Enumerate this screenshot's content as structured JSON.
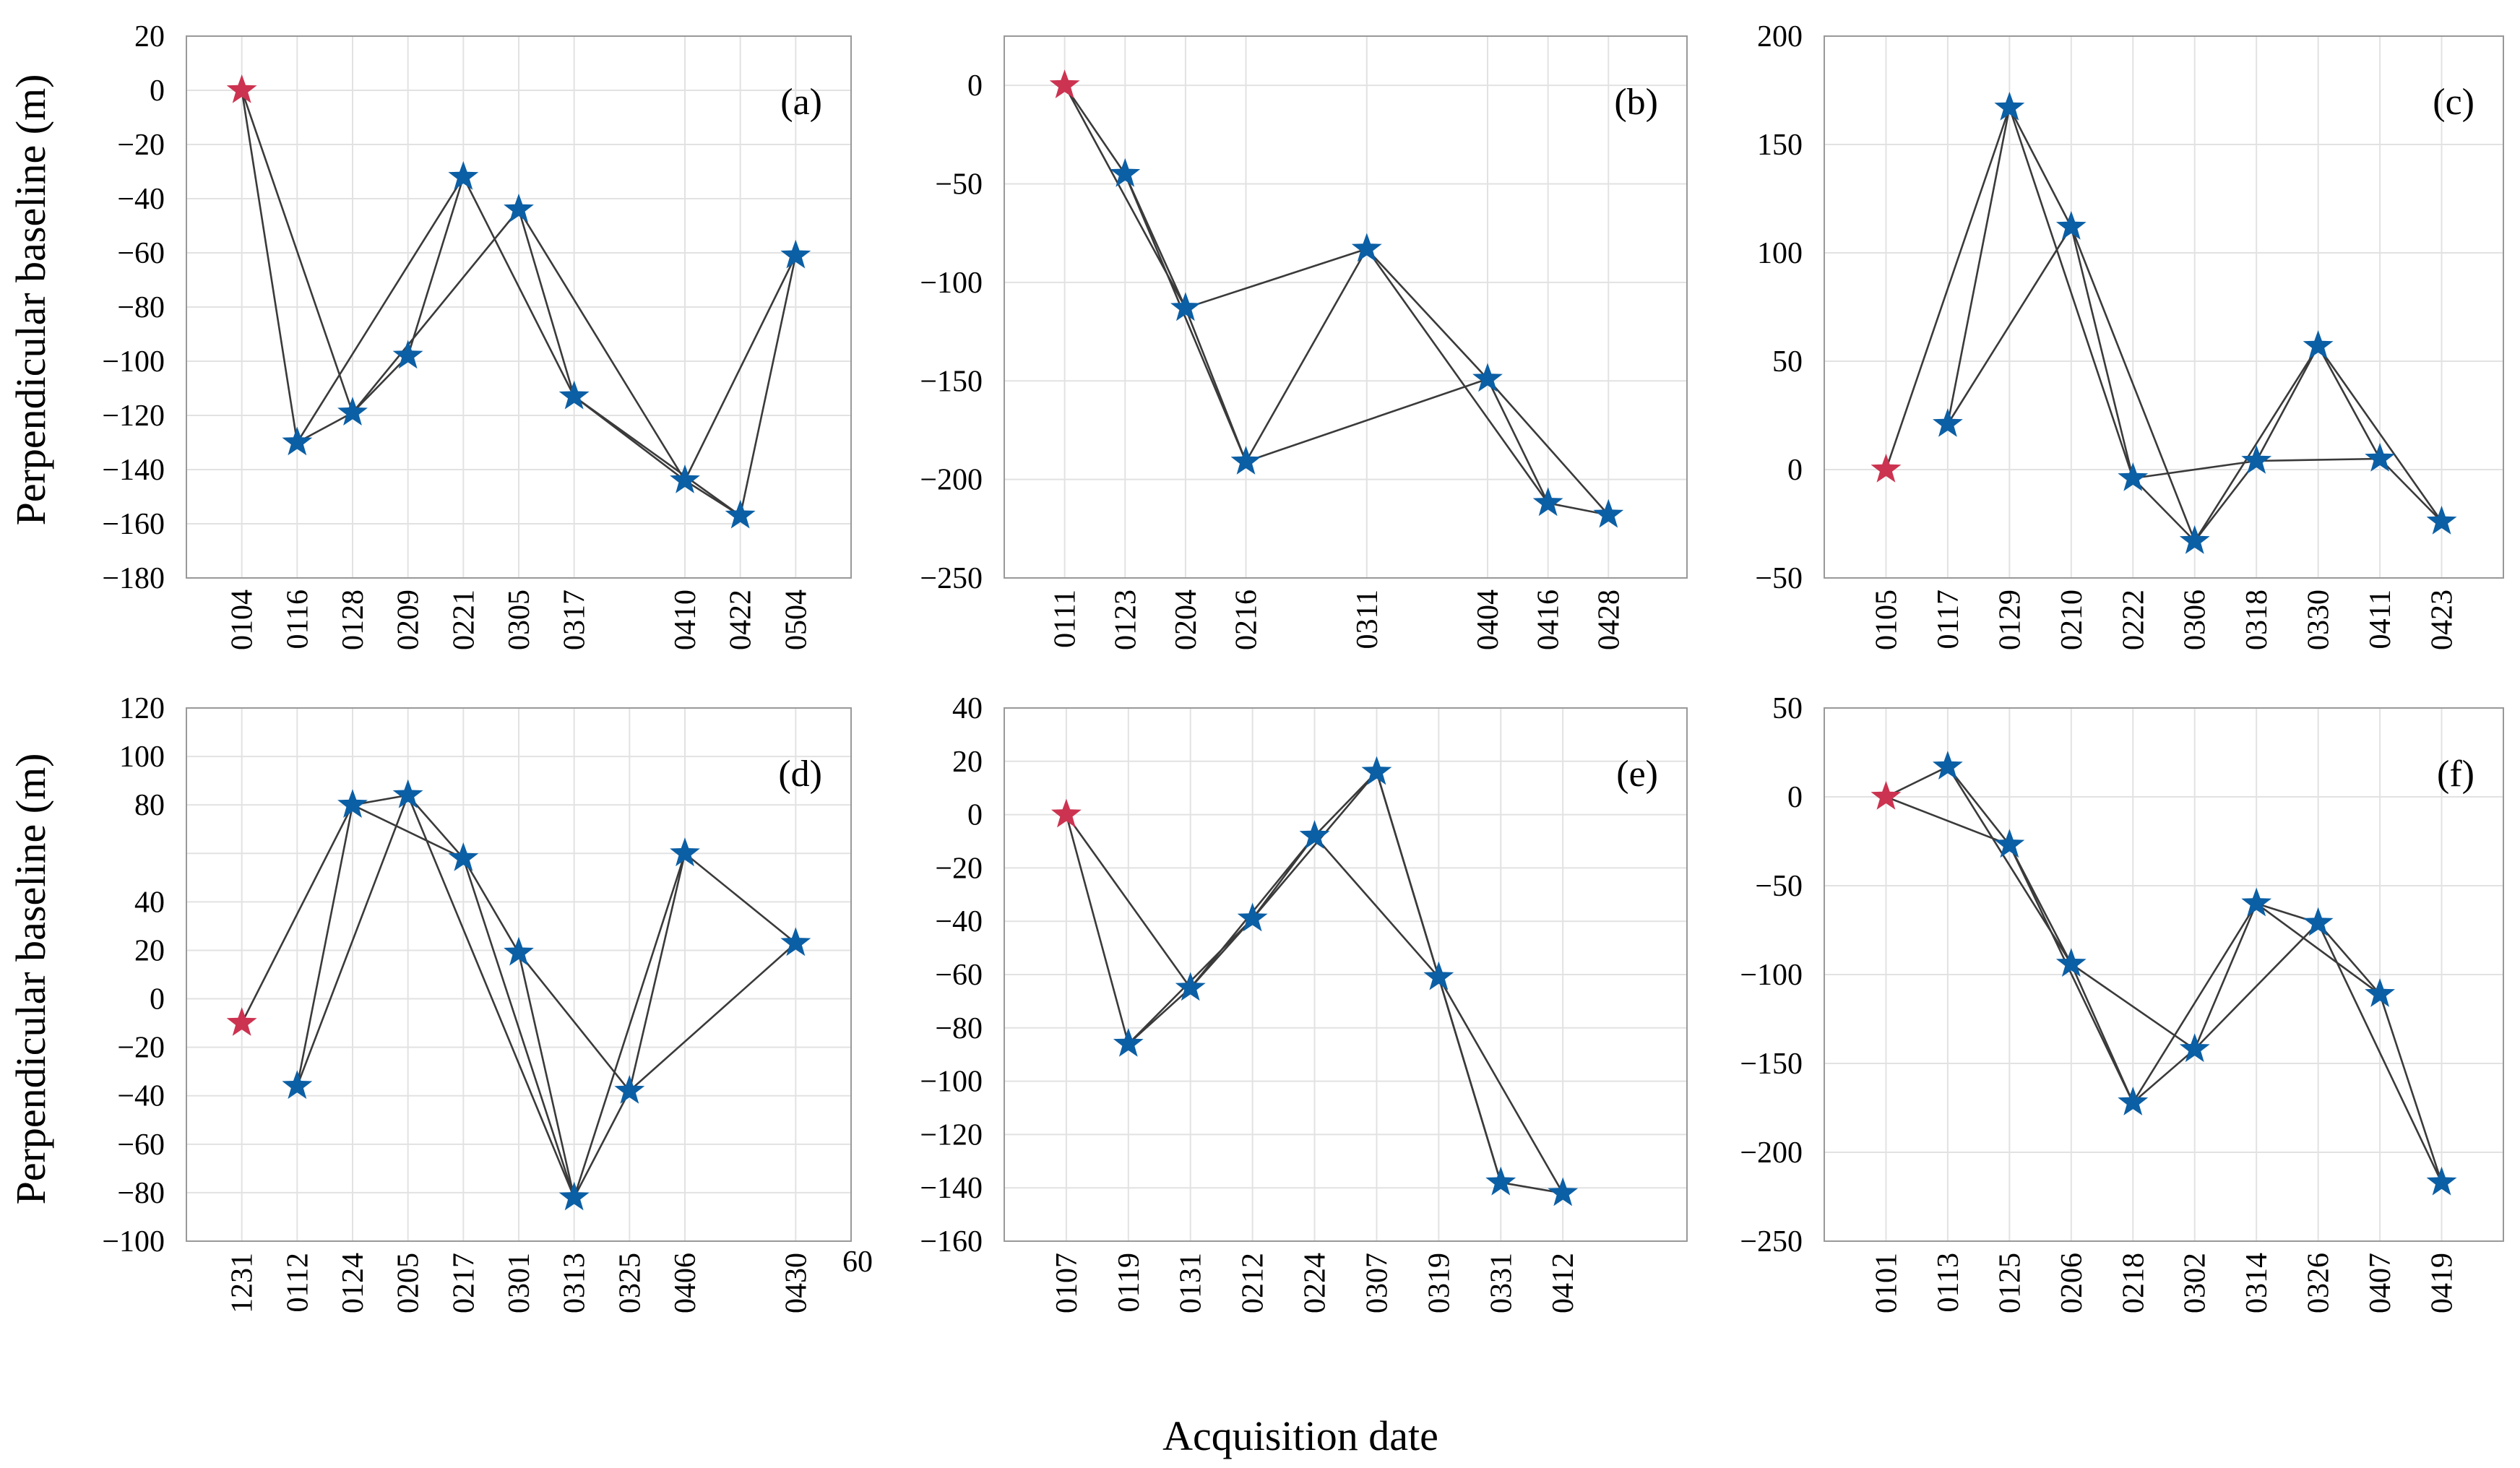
{
  "figure": {
    "ylabel": "Perpendicular baseline (m)",
    "xlabel": "Acquisition date"
  },
  "colors": {
    "master": "#cc3350",
    "slave": "#0b5fa5",
    "edge": "#3a3a3a"
  },
  "chart_data": [
    {
      "type": "scatter",
      "label": "(a)",
      "title": "",
      "xlabel": "Acquisition date",
      "ylabel": "Perpendicular baseline (m)",
      "dates": [
        "0104",
        "0116",
        "0128",
        "0209",
        "0221",
        "0305",
        "0317",
        "0410",
        "0422",
        "0504"
      ],
      "tick_labels": [
        "0104",
        "0116",
        "0128",
        "0209",
        "0221",
        "0305",
        "0317",
        "0410",
        "0422",
        "0504"
      ],
      "tick_positions": [
        0,
        1,
        2,
        3,
        4,
        5,
        6,
        8,
        9,
        10
      ],
      "points": [
        {
          "date": "0104",
          "day": 0,
          "baseline": 0,
          "master": true
        },
        {
          "date": "0116",
          "day": 1,
          "baseline": -130
        },
        {
          "date": "0128",
          "day": 2,
          "baseline": -119
        },
        {
          "date": "0209",
          "day": 3,
          "baseline": -98
        },
        {
          "date": "0221",
          "day": 4,
          "baseline": -32
        },
        {
          "date": "0305",
          "day": 5,
          "baseline": -44
        },
        {
          "date": "0317",
          "day": 6,
          "baseline": -113
        },
        {
          "date": "0410",
          "day": 8,
          "baseline": -144
        },
        {
          "date": "0422",
          "day": 9,
          "baseline": -157
        },
        {
          "date": "0504",
          "day": 10,
          "baseline": -61
        }
      ],
      "edges": [
        [
          0,
          1
        ],
        [
          0,
          2
        ],
        [
          1,
          2
        ],
        [
          1,
          4
        ],
        [
          2,
          3
        ],
        [
          2,
          5
        ],
        [
          3,
          4
        ],
        [
          4,
          6
        ],
        [
          5,
          6
        ],
        [
          5,
          7
        ],
        [
          6,
          7
        ],
        [
          6,
          8
        ],
        [
          7,
          8
        ],
        [
          7,
          9
        ],
        [
          8,
          9
        ]
      ],
      "ylim": [
        -180,
        20
      ],
      "yticks": [
        20,
        0,
        -20,
        -40,
        -60,
        -80,
        -100,
        -120,
        -140,
        -160,
        -180
      ],
      "ytick_labels": [
        "20",
        "0",
        "−20",
        "−40",
        "−60",
        "−80",
        "−100",
        "−120",
        "−140",
        "−160",
        "−180"
      ],
      "xlim": [
        -1,
        11
      ],
      "grid": true
    },
    {
      "type": "scatter",
      "label": "(b)",
      "title": "",
      "xlabel": "Acquisition date",
      "ylabel": "Perpendicular baseline (m)",
      "dates": [
        "0111",
        "0123",
        "0204",
        "0216",
        "0311",
        "0404",
        "0416",
        "0428"
      ],
      "tick_labels": [
        "0111",
        "0123",
        "0204",
        "0216",
        "0311",
        "0404",
        "0416",
        "0428"
      ],
      "tick_positions": [
        0,
        1,
        2,
        3,
        5,
        7,
        8,
        9
      ],
      "points": [
        {
          "date": "0111",
          "day": 0,
          "baseline": 0,
          "master": true
        },
        {
          "date": "0123",
          "day": 1,
          "baseline": -45
        },
        {
          "date": "0204",
          "day": 2,
          "baseline": -113
        },
        {
          "date": "0216",
          "day": 3,
          "baseline": -191
        },
        {
          "date": "0311",
          "day": 5,
          "baseline": -83
        },
        {
          "date": "0404",
          "day": 7,
          "baseline": -149
        },
        {
          "date": "0416",
          "day": 8,
          "baseline": -212
        },
        {
          "date": "0428",
          "day": 9,
          "baseline": -218
        }
      ],
      "edges": [
        [
          0,
          1
        ],
        [
          0,
          2
        ],
        [
          1,
          2
        ],
        [
          1,
          3
        ],
        [
          2,
          3
        ],
        [
          2,
          4
        ],
        [
          3,
          4
        ],
        [
          3,
          5
        ],
        [
          4,
          5
        ],
        [
          4,
          6
        ],
        [
          5,
          6
        ],
        [
          6,
          7
        ],
        [
          5,
          7
        ]
      ],
      "ylim": [
        -250,
        25
      ],
      "yticks": [
        0,
        -50,
        -100,
        -150,
        -200,
        -250
      ],
      "ytick_labels": [
        "0",
        "−50",
        "−100",
        "−150",
        "−200",
        "−250"
      ],
      "xlim": [
        -1,
        10.3
      ],
      "grid": true
    },
    {
      "type": "scatter",
      "label": "(c)",
      "title": "",
      "xlabel": "Acquisition date",
      "ylabel": "Perpendicular baseline (m)",
      "dates": [
        "0105",
        "0117",
        "0129",
        "0210",
        "0222",
        "0306",
        "0318",
        "0330",
        "0411",
        "0423"
      ],
      "tick_labels": [
        "0105",
        "0117",
        "0129",
        "0210",
        "0222",
        "0306",
        "0318",
        "0330",
        "0411",
        "0423"
      ],
      "tick_positions": [
        0,
        1,
        2,
        3,
        4,
        5,
        6,
        7,
        8,
        9
      ],
      "points": [
        {
          "date": "0105",
          "day": 0,
          "baseline": 0,
          "master": true
        },
        {
          "date": "0117",
          "day": 1,
          "baseline": 21
        },
        {
          "date": "0129",
          "day": 2,
          "baseline": 167
        },
        {
          "date": "0210",
          "day": 3,
          "baseline": 112
        },
        {
          "date": "0222",
          "day": 4,
          "baseline": -4
        },
        {
          "date": "0306",
          "day": 5,
          "baseline": -33
        },
        {
          "date": "0318",
          "day": 6,
          "baseline": 4
        },
        {
          "date": "0330",
          "day": 7,
          "baseline": 57
        },
        {
          "date": "0411",
          "day": 8,
          "baseline": 5
        },
        {
          "date": "0423",
          "day": 9,
          "baseline": -24
        }
      ],
      "edges": [
        [
          0,
          2
        ],
        [
          1,
          2
        ],
        [
          1,
          3
        ],
        [
          2,
          3
        ],
        [
          2,
          4
        ],
        [
          3,
          4
        ],
        [
          3,
          5
        ],
        [
          4,
          5
        ],
        [
          4,
          6
        ],
        [
          5,
          6
        ],
        [
          5,
          7
        ],
        [
          6,
          7
        ],
        [
          6,
          8
        ],
        [
          7,
          8
        ],
        [
          7,
          9
        ],
        [
          8,
          9
        ]
      ],
      "ylim": [
        -50,
        200
      ],
      "yticks": [
        200,
        150,
        100,
        50,
        0,
        -50
      ],
      "ytick_labels": [
        "200",
        "150",
        "100",
        "50",
        "0",
        "−50"
      ],
      "xlim": [
        -1,
        10
      ],
      "grid": true
    },
    {
      "type": "scatter",
      "label": "(d)",
      "title": "",
      "xlabel": "Acquisition date",
      "ylabel": "Perpendicular baseline (m)",
      "dates": [
        "1231",
        "0112",
        "0124",
        "0205",
        "0217",
        "0301",
        "0313",
        "0325",
        "0406",
        "0430"
      ],
      "tick_labels": [
        "1231",
        "0112",
        "0124",
        "0205",
        "0217",
        "0301",
        "0313",
        "0325",
        "0406",
        "0430"
      ],
      "tick_positions": [
        0,
        1,
        2,
        3,
        4,
        5,
        6,
        7,
        8,
        10
      ],
      "extra_tick": "60",
      "points": [
        {
          "date": "1231",
          "day": 0,
          "baseline": -10,
          "master": true
        },
        {
          "date": "0112",
          "day": 1,
          "baseline": -36
        },
        {
          "date": "0124",
          "day": 2,
          "baseline": 80
        },
        {
          "date": "0205",
          "day": 3,
          "baseline": 84
        },
        {
          "date": "0217",
          "day": 4,
          "baseline": 58
        },
        {
          "date": "0301",
          "day": 5,
          "baseline": 19
        },
        {
          "date": "0313",
          "day": 6,
          "baseline": -82
        },
        {
          "date": "0325",
          "day": 7,
          "baseline": -38
        },
        {
          "date": "0406",
          "day": 8,
          "baseline": 60
        },
        {
          "date": "0430",
          "day": 10,
          "baseline": 23
        }
      ],
      "edges": [
        [
          0,
          2
        ],
        [
          1,
          2
        ],
        [
          1,
          3
        ],
        [
          2,
          3
        ],
        [
          2,
          4
        ],
        [
          3,
          4
        ],
        [
          3,
          6
        ],
        [
          4,
          5
        ],
        [
          4,
          6
        ],
        [
          5,
          6
        ],
        [
          5,
          7
        ],
        [
          6,
          7
        ],
        [
          6,
          8
        ],
        [
          7,
          8
        ],
        [
          7,
          9
        ],
        [
          8,
          9
        ]
      ],
      "ylim": [
        -100,
        120
      ],
      "yticks": [
        120,
        100,
        80,
        40,
        20,
        0,
        -20,
        -40,
        -60,
        -80,
        -100
      ],
      "ytick_values": [
        120,
        100,
        80,
        60,
        40,
        20,
        0,
        -20,
        -40,
        -60,
        -80,
        -100
      ],
      "ytick_labels": [
        "120",
        "100",
        "80",
        "40",
        "20",
        "0",
        "−20",
        "−40",
        "−60",
        "−80",
        "−100"
      ],
      "xlim": [
        -1,
        11
      ],
      "grid": true
    },
    {
      "type": "scatter",
      "label": "(e)",
      "title": "",
      "xlabel": "Acquisition date",
      "ylabel": "Perpendicular baseline (m)",
      "dates": [
        "0107",
        "0119",
        "0131",
        "0212",
        "0224",
        "0307",
        "0319",
        "0331",
        "0412"
      ],
      "tick_labels": [
        "0107",
        "0119",
        "0131",
        "0212",
        "0224",
        "0307",
        "0319",
        "0331",
        "0412"
      ],
      "tick_positions": [
        0,
        1,
        2,
        3,
        4,
        5,
        6,
        7,
        8
      ],
      "points": [
        {
          "date": "0107",
          "day": 0,
          "baseline": 0,
          "master": true
        },
        {
          "date": "0119",
          "day": 1,
          "baseline": -86
        },
        {
          "date": "0131",
          "day": 2,
          "baseline": -65
        },
        {
          "date": "0212",
          "day": 3,
          "baseline": -39
        },
        {
          "date": "0224",
          "day": 4,
          "baseline": -8
        },
        {
          "date": "0307",
          "day": 5,
          "baseline": 16
        },
        {
          "date": "0319",
          "day": 6,
          "baseline": -61
        },
        {
          "date": "0331",
          "day": 7,
          "baseline": -138
        },
        {
          "date": "0412",
          "day": 8,
          "baseline": -142
        }
      ],
      "edges": [
        [
          0,
          1
        ],
        [
          0,
          2
        ],
        [
          1,
          2
        ],
        [
          1,
          3
        ],
        [
          2,
          3
        ],
        [
          2,
          4
        ],
        [
          3,
          4
        ],
        [
          3,
          5
        ],
        [
          4,
          5
        ],
        [
          4,
          6
        ],
        [
          5,
          6
        ],
        [
          5,
          7
        ],
        [
          6,
          7
        ],
        [
          6,
          8
        ],
        [
          7,
          8
        ]
      ],
      "ylim": [
        -160,
        40
      ],
      "yticks": [
        40,
        20,
        0,
        -20,
        -40,
        -60,
        -80,
        -100,
        -120,
        -140,
        -160
      ],
      "ytick_labels": [
        "40",
        "20",
        "0",
        "−20",
        "−40",
        "−60",
        "−80",
        "−100",
        "−120",
        "−140",
        "−160"
      ],
      "xlim": [
        -1,
        10
      ],
      "grid": true
    },
    {
      "type": "scatter",
      "label": "(f)",
      "title": "",
      "xlabel": "Acquisition date",
      "ylabel": "Perpendicular baseline (m)",
      "dates": [
        "0101",
        "0113",
        "0125",
        "0206",
        "0218",
        "0302",
        "0314",
        "0326",
        "0407",
        "0419"
      ],
      "tick_labels": [
        "0101",
        "0113",
        "0125",
        "0206",
        "0218",
        "0302",
        "0314",
        "0326",
        "0407",
        "0419"
      ],
      "tick_positions": [
        0,
        1,
        2,
        3,
        4,
        5,
        6,
        7,
        8,
        9
      ],
      "points": [
        {
          "date": "0101",
          "day": 0,
          "baseline": 0,
          "master": true
        },
        {
          "date": "0113",
          "day": 1,
          "baseline": 17
        },
        {
          "date": "0125",
          "day": 2,
          "baseline": -27
        },
        {
          "date": "0206",
          "day": 3,
          "baseline": -94
        },
        {
          "date": "0218",
          "day": 4,
          "baseline": -172
        },
        {
          "date": "0302",
          "day": 5,
          "baseline": -142
        },
        {
          "date": "0314",
          "day": 6,
          "baseline": -60
        },
        {
          "date": "0326",
          "day": 7,
          "baseline": -71
        },
        {
          "date": "0407",
          "day": 8,
          "baseline": -111
        },
        {
          "date": "0419",
          "day": 9,
          "baseline": -217
        }
      ],
      "edges": [
        [
          0,
          1
        ],
        [
          0,
          2
        ],
        [
          1,
          2
        ],
        [
          1,
          3
        ],
        [
          2,
          3
        ],
        [
          2,
          4
        ],
        [
          3,
          4
        ],
        [
          3,
          5
        ],
        [
          4,
          5
        ],
        [
          4,
          6
        ],
        [
          5,
          6
        ],
        [
          5,
          7
        ],
        [
          6,
          7
        ],
        [
          6,
          8
        ],
        [
          7,
          8
        ],
        [
          7,
          9
        ],
        [
          8,
          9
        ]
      ],
      "ylim": [
        -250,
        50
      ],
      "yticks": [
        50,
        0,
        -50,
        -100,
        -150,
        -200,
        -250
      ],
      "ytick_labels": [
        "50",
        "0",
        "−50",
        "−100",
        "−150",
        "−200",
        "−250"
      ],
      "xlim": [
        -1,
        10
      ],
      "grid": true
    }
  ]
}
